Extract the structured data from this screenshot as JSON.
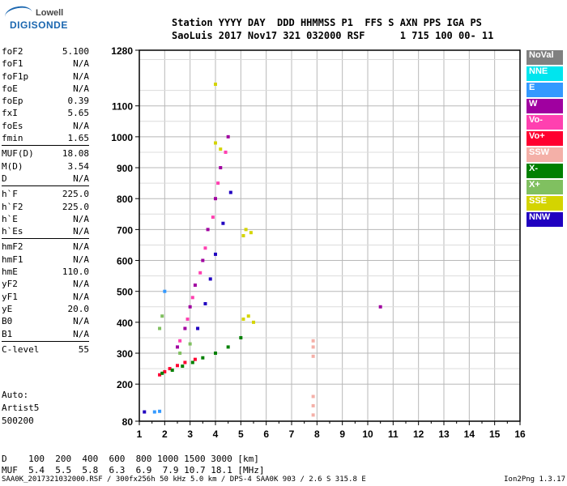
{
  "logo": {
    "line1": "Lowell",
    "line2": "DIGISONDE"
  },
  "header": {
    "row1": "Station YYYY DAY  DDD HHMMSS P1  FFS S AXN PPS IGA PS",
    "row2": "SaoLuis 2017 Nov17 321 032000 RSF      1 715 100 00- 11"
  },
  "params_groups": [
    [
      {
        "label": "foF2",
        "value": "5.100"
      },
      {
        "label": "foF1",
        "value": "N/A"
      },
      {
        "label": "foF1p",
        "value": "N/A"
      },
      {
        "label": "foE",
        "value": "N/A"
      },
      {
        "label": "foEp",
        "value": "0.39"
      },
      {
        "label": "fxI",
        "value": "5.65"
      },
      {
        "label": "foEs",
        "value": "N/A"
      },
      {
        "label": "fmin",
        "value": "1.65"
      }
    ],
    [
      {
        "label": "MUF(D)",
        "value": "18.08"
      },
      {
        "label": "M(D)",
        "value": "3.54"
      },
      {
        "label": "D",
        "value": "N/A"
      }
    ],
    [
      {
        "label": "h`F",
        "value": "225.0"
      },
      {
        "label": "h`F2",
        "value": "225.0"
      },
      {
        "label": "h`E",
        "value": "N/A"
      },
      {
        "label": "h`Es",
        "value": "N/A"
      }
    ],
    [
      {
        "label": "hmF2",
        "value": "N/A"
      },
      {
        "label": "hmF1",
        "value": "N/A"
      },
      {
        "label": "hmE",
        "value": "110.0"
      },
      {
        "label": "yF2",
        "value": "N/A"
      },
      {
        "label": "yF1",
        "value": "N/A"
      },
      {
        "label": "yE",
        "value": "20.0"
      },
      {
        "label": "B0",
        "value": "N/A"
      },
      {
        "label": "B1",
        "value": "N/A"
      }
    ],
    [
      {
        "label": "C-level",
        "value": "55"
      }
    ]
  ],
  "auto": {
    "line1": "Auto:",
    "line2": "Artist5",
    "line3": "500200"
  },
  "legend": [
    {
      "label": "NoVal",
      "color": "#808080"
    },
    {
      "label": "NNE",
      "color": "#00e5ee"
    },
    {
      "label": "E",
      "color": "#3399ff"
    },
    {
      "label": "W",
      "color": "#a000a0"
    },
    {
      "label": "Vo-",
      "color": "#ff40b0"
    },
    {
      "label": "Vo+",
      "color": "#ff0030"
    },
    {
      "label": "SSW",
      "color": "#f4b0a8"
    },
    {
      "label": "X-",
      "color": "#008000"
    },
    {
      "label": "X+",
      "color": "#80c060"
    },
    {
      "label": "SSE",
      "color": "#d4d400"
    },
    {
      "label": "NNW",
      "color": "#2000c0"
    }
  ],
  "chart_data": {
    "type": "scatter",
    "xlim": [
      1,
      16
    ],
    "ylim": [
      80,
      1280
    ],
    "x_ticks": [
      "1",
      "2",
      "3",
      "4",
      "5",
      "6",
      "7",
      "8",
      "9",
      "10",
      "11",
      "12",
      "13",
      "14",
      "15",
      "16"
    ],
    "y_ticks": [
      "80",
      "200",
      "300",
      "400",
      "500",
      "600",
      "700",
      "800",
      "900",
      "1000",
      "1100",
      "1280"
    ],
    "grid": true,
    "points": [
      {
        "x": 1.8,
        "y": 230,
        "c": "Vo+"
      },
      {
        "x": 2.0,
        "y": 240,
        "c": "Vo+"
      },
      {
        "x": 2.2,
        "y": 250,
        "c": "Vo+"
      },
      {
        "x": 2.5,
        "y": 260,
        "c": "Vo+"
      },
      {
        "x": 2.8,
        "y": 270,
        "c": "Vo+"
      },
      {
        "x": 3.2,
        "y": 280,
        "c": "Vo+"
      },
      {
        "x": 1.9,
        "y": 235,
        "c": "X-"
      },
      {
        "x": 2.3,
        "y": 245,
        "c": "X-"
      },
      {
        "x": 2.7,
        "y": 258,
        "c": "X-"
      },
      {
        "x": 3.1,
        "y": 270,
        "c": "X-"
      },
      {
        "x": 3.5,
        "y": 285,
        "c": "X-"
      },
      {
        "x": 4.0,
        "y": 300,
        "c": "X-"
      },
      {
        "x": 4.5,
        "y": 320,
        "c": "X-"
      },
      {
        "x": 5.0,
        "y": 350,
        "c": "X-"
      },
      {
        "x": 2.5,
        "y": 320,
        "c": "W"
      },
      {
        "x": 2.8,
        "y": 380,
        "c": "W"
      },
      {
        "x": 3.0,
        "y": 450,
        "c": "W"
      },
      {
        "x": 3.2,
        "y": 520,
        "c": "W"
      },
      {
        "x": 3.5,
        "y": 600,
        "c": "W"
      },
      {
        "x": 3.7,
        "y": 700,
        "c": "W"
      },
      {
        "x": 4.0,
        "y": 800,
        "c": "W"
      },
      {
        "x": 4.2,
        "y": 900,
        "c": "W"
      },
      {
        "x": 4.5,
        "y": 1000,
        "c": "W"
      },
      {
        "x": 2.6,
        "y": 340,
        "c": "Vo-"
      },
      {
        "x": 2.9,
        "y": 410,
        "c": "Vo-"
      },
      {
        "x": 3.1,
        "y": 480,
        "c": "Vo-"
      },
      {
        "x": 3.4,
        "y": 560,
        "c": "Vo-"
      },
      {
        "x": 3.6,
        "y": 640,
        "c": "Vo-"
      },
      {
        "x": 3.9,
        "y": 740,
        "c": "Vo-"
      },
      {
        "x": 4.1,
        "y": 850,
        "c": "Vo-"
      },
      {
        "x": 4.4,
        "y": 950,
        "c": "Vo-"
      },
      {
        "x": 3.3,
        "y": 380,
        "c": "NNW"
      },
      {
        "x": 3.6,
        "y": 460,
        "c": "NNW"
      },
      {
        "x": 3.8,
        "y": 540,
        "c": "NNW"
      },
      {
        "x": 4.0,
        "y": 620,
        "c": "NNW"
      },
      {
        "x": 4.3,
        "y": 720,
        "c": "NNW"
      },
      {
        "x": 4.6,
        "y": 820,
        "c": "NNW"
      },
      {
        "x": 5.1,
        "y": 680,
        "c": "SSE"
      },
      {
        "x": 5.2,
        "y": 700,
        "c": "SSE"
      },
      {
        "x": 5.4,
        "y": 690,
        "c": "SSE"
      },
      {
        "x": 5.1,
        "y": 410,
        "c": "SSE"
      },
      {
        "x": 5.3,
        "y": 420,
        "c": "SSE"
      },
      {
        "x": 5.5,
        "y": 400,
        "c": "SSE"
      },
      {
        "x": 4.0,
        "y": 980,
        "c": "SSE"
      },
      {
        "x": 4.2,
        "y": 960,
        "c": "SSE"
      },
      {
        "x": 4.0,
        "y": 1170,
        "c": "SSE"
      },
      {
        "x": 1.8,
        "y": 380,
        "c": "X+"
      },
      {
        "x": 1.9,
        "y": 420,
        "c": "X+"
      },
      {
        "x": 2.6,
        "y": 300,
        "c": "X+"
      },
      {
        "x": 3.0,
        "y": 330,
        "c": "X+"
      },
      {
        "x": 1.6,
        "y": 110,
        "c": "E"
      },
      {
        "x": 1.8,
        "y": 112,
        "c": "E"
      },
      {
        "x": 2.0,
        "y": 500,
        "c": "E"
      },
      {
        "x": 1.2,
        "y": 110,
        "c": "NNW"
      },
      {
        "x": 7.85,
        "y": 340,
        "c": "SSW"
      },
      {
        "x": 7.85,
        "y": 320,
        "c": "SSW"
      },
      {
        "x": 7.85,
        "y": 290,
        "c": "SSW"
      },
      {
        "x": 7.85,
        "y": 160,
        "c": "SSW"
      },
      {
        "x": 7.85,
        "y": 130,
        "c": "SSW"
      },
      {
        "x": 7.85,
        "y": 100,
        "c": "SSW"
      },
      {
        "x": 10.5,
        "y": 450,
        "c": "W"
      }
    ]
  },
  "bottom_table": {
    "row1": "D    100  200  400  600  800 1000 1500 3000 [km]",
    "row2": "MUF  5.4  5.5  5.8  6.3  6.9  7.9 10.7 18.1 [MHz]"
  },
  "footer": {
    "left": "SAA0K_2017321032000.RSF / 300fx256h 50 kHz 5.0 km / DPS-4 SAA0K 903 / 2.6 S 315.8 E",
    "right": "Ion2Png 1.3.17"
  }
}
